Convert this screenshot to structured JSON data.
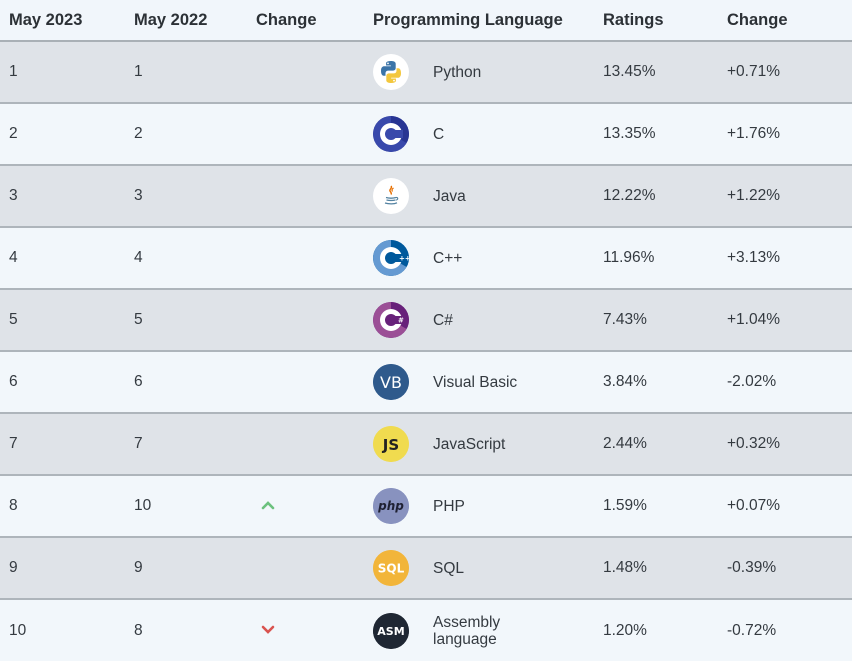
{
  "headers": {
    "current_rank": "May 2023",
    "previous_rank": "May 2022",
    "trend": "Change",
    "language": "Programming Language",
    "ratings": "Ratings",
    "ratings_change": "Change"
  },
  "rows": [
    {
      "current_rank": "1",
      "previous_rank": "1",
      "trend": "",
      "language": "Python",
      "logo": "python-logo-icon",
      "ratings": "13.45%",
      "ratings_change": "+0.71%"
    },
    {
      "current_rank": "2",
      "previous_rank": "2",
      "trend": "",
      "language": "C",
      "logo": "c-logo-icon",
      "ratings": "13.35%",
      "ratings_change": "+1.76%"
    },
    {
      "current_rank": "3",
      "previous_rank": "3",
      "trend": "",
      "language": "Java",
      "logo": "java-logo-icon",
      "ratings": "12.22%",
      "ratings_change": "+1.22%"
    },
    {
      "current_rank": "4",
      "previous_rank": "4",
      "trend": "",
      "language": "C++",
      "logo": "cpp-logo-icon",
      "ratings": "11.96%",
      "ratings_change": "+3.13%"
    },
    {
      "current_rank": "5",
      "previous_rank": "5",
      "trend": "",
      "language": "C#",
      "logo": "csharp-logo-icon",
      "ratings": "7.43%",
      "ratings_change": "+1.04%"
    },
    {
      "current_rank": "6",
      "previous_rank": "6",
      "trend": "",
      "language": "Visual Basic",
      "logo": "visual-basic-logo-icon",
      "ratings": "3.84%",
      "ratings_change": "-2.02%"
    },
    {
      "current_rank": "7",
      "previous_rank": "7",
      "trend": "",
      "language": "JavaScript",
      "logo": "javascript-logo-icon",
      "ratings": "2.44%",
      "ratings_change": "+0.32%"
    },
    {
      "current_rank": "8",
      "previous_rank": "10",
      "trend": "up",
      "language": "PHP",
      "logo": "php-logo-icon",
      "ratings": "1.59%",
      "ratings_change": "+0.07%"
    },
    {
      "current_rank": "9",
      "previous_rank": "9",
      "trend": "",
      "language": "SQL",
      "logo": "sql-logo-icon",
      "ratings": "1.48%",
      "ratings_change": "-0.39%"
    },
    {
      "current_rank": "10",
      "previous_rank": "8",
      "trend": "down",
      "language": "Assembly language",
      "logo": "assembly-logo-icon",
      "ratings": "1.20%",
      "ratings_change": "-0.72%"
    }
  ],
  "logo_text": {
    "visual_basic": "VB",
    "javascript": "JS",
    "php": "php",
    "sql": "SQL",
    "assembly": "ASM"
  },
  "colors": {
    "trend_up": "#6cc17e",
    "trend_down": "#d9534f",
    "row_odd": "#dfe3e8",
    "row_even": "#f2f7fb"
  }
}
